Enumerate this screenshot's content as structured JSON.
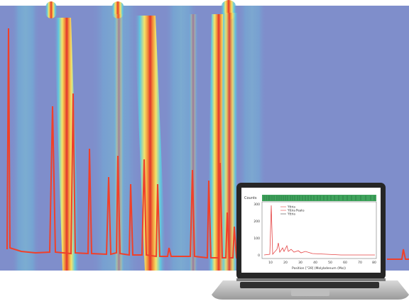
{
  "screen_chart": {
    "ylabel": "Counts",
    "xlabel": "Position [°2θ] (Molybdenum (Mo))",
    "legend": [
      "Yttria",
      "Yttria Peaks",
      "Yttria"
    ],
    "yticks": [
      "300",
      "200",
      "100",
      "0"
    ],
    "xticks": [
      "10",
      "20",
      "30",
      "40",
      "50",
      "60",
      "70",
      "80"
    ]
  },
  "colors": {
    "background_blue": "#7f8ecb",
    "cyan": "#5fc9df",
    "yellow": "#f3e36a",
    "orange": "#f2923a",
    "red": "#e1322e",
    "pattern_line": "#f0402a",
    "phase_bar": "#3fa35c"
  },
  "icons": [
    "laptop-icon"
  ]
}
